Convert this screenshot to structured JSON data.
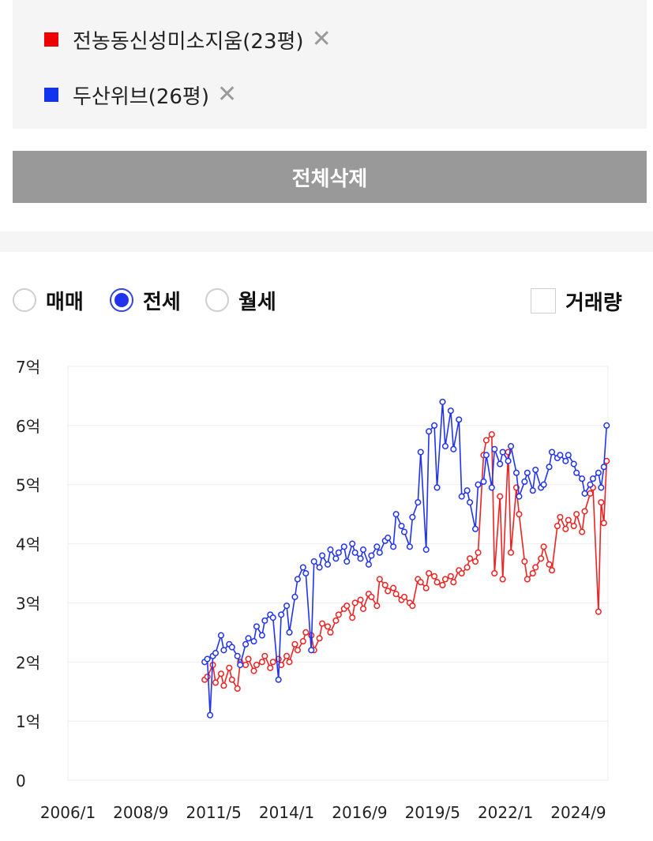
{
  "legend": {
    "items": [
      {
        "label": "전농동신성미소지움(23평)",
        "color": "#ee0000",
        "remove": "✕"
      },
      {
        "label": "두산위브(26평)",
        "color": "#1133ee",
        "remove": "✕"
      }
    ]
  },
  "delete_all_label": "전체삭제",
  "trade_options": [
    {
      "label": "매매",
      "selected": false
    },
    {
      "label": "전세",
      "selected": true
    },
    {
      "label": "월세",
      "selected": false
    }
  ],
  "volume_toggle": {
    "label": "거래량",
    "checked": false
  },
  "chart_data": {
    "type": "line",
    "title": "",
    "xlabel": "",
    "ylabel": "",
    "ylim": [
      0,
      7
    ],
    "xlim": [
      2006.0,
      2025.75
    ],
    "grid": true,
    "y_ticks": [
      {
        "value": 0,
        "label": "0"
      },
      {
        "value": 1,
        "label": "1억"
      },
      {
        "value": 2,
        "label": "2억"
      },
      {
        "value": 3,
        "label": "3억"
      },
      {
        "value": 4,
        "label": "4억"
      },
      {
        "value": 5,
        "label": "5억"
      },
      {
        "value": 6,
        "label": "6억"
      },
      {
        "value": 7,
        "label": "7억"
      }
    ],
    "x_ticks": [
      {
        "value": 2006.0,
        "label": "2006/1"
      },
      {
        "value": 2008.667,
        "label": "2008/9"
      },
      {
        "value": 2011.333,
        "label": "2011/5"
      },
      {
        "value": 2014.0,
        "label": "2014/1"
      },
      {
        "value": 2016.667,
        "label": "2016/9"
      },
      {
        "value": 2019.333,
        "label": "2019/5"
      },
      {
        "value": 2022.0,
        "label": "2022/1"
      },
      {
        "value": 2024.667,
        "label": "2024/9"
      }
    ],
    "series": [
      {
        "name": "전농동신성미소지움(23평)",
        "color": "#ee2222",
        "x": [
          2011.0,
          2011.1,
          2011.3,
          2011.4,
          2011.6,
          2011.7,
          2011.9,
          2012.0,
          2012.2,
          2012.3,
          2012.5,
          2012.6,
          2012.8,
          2012.9,
          2013.1,
          2013.2,
          2013.4,
          2013.5,
          2013.7,
          2013.8,
          2014.0,
          2014.1,
          2014.3,
          2014.4,
          2014.6,
          2014.7,
          2014.9,
          2015.0,
          2015.2,
          2015.3,
          2015.5,
          2015.6,
          2015.8,
          2015.9,
          2016.1,
          2016.2,
          2016.4,
          2016.5,
          2016.7,
          2016.8,
          2017.0,
          2017.1,
          2017.3,
          2017.4,
          2017.6,
          2017.7,
          2017.9,
          2018.0,
          2018.2,
          2018.3,
          2018.5,
          2018.6,
          2018.8,
          2018.9,
          2019.1,
          2019.2,
          2019.4,
          2019.5,
          2019.7,
          2019.8,
          2020.0,
          2020.1,
          2020.3,
          2020.4,
          2020.6,
          2020.7,
          2020.9,
          2021.0,
          2021.2,
          2021.3,
          2021.5,
          2021.6,
          2021.8,
          2021.9,
          2022.1,
          2022.2,
          2022.4,
          2022.5,
          2022.7,
          2022.8,
          2023.0,
          2023.1,
          2023.3,
          2023.4,
          2023.6,
          2023.7,
          2023.9,
          2024.0,
          2024.2,
          2024.3,
          2024.5,
          2024.6,
          2024.8,
          2024.9,
          2025.1,
          2025.2,
          2025.4,
          2025.5,
          2025.6,
          2025.7
        ],
        "values": [
          1.7,
          1.75,
          1.95,
          1.65,
          1.8,
          1.6,
          1.9,
          1.7,
          1.55,
          2.0,
          1.95,
          2.05,
          1.85,
          1.95,
          2.0,
          2.1,
          1.9,
          2.0,
          2.05,
          1.95,
          2.1,
          2.0,
          2.3,
          2.2,
          2.35,
          2.5,
          2.45,
          2.2,
          2.4,
          2.65,
          2.6,
          2.5,
          2.7,
          2.8,
          2.9,
          2.95,
          2.75,
          3.0,
          3.05,
          2.9,
          3.15,
          3.1,
          2.95,
          3.4,
          3.3,
          3.2,
          3.25,
          3.15,
          3.05,
          3.1,
          3.0,
          2.95,
          3.4,
          3.35,
          3.25,
          3.5,
          3.45,
          3.35,
          3.3,
          3.4,
          3.45,
          3.35,
          3.55,
          3.5,
          3.6,
          3.75,
          3.7,
          3.85,
          5.5,
          5.75,
          5.85,
          3.5,
          4.8,
          3.4,
          5.55,
          3.85,
          4.95,
          4.5,
          3.7,
          3.4,
          3.5,
          3.6,
          3.75,
          3.95,
          3.65,
          3.55,
          4.3,
          4.45,
          4.25,
          4.4,
          4.3,
          4.5,
          4.2,
          4.55,
          4.85,
          4.95,
          2.85,
          4.7,
          4.35,
          5.4
        ]
      },
      {
        "name": "두산위브(26평)",
        "color": "#2233ee",
        "x": [
          2011.0,
          2011.1,
          2011.2,
          2011.3,
          2011.4,
          2011.6,
          2011.7,
          2011.9,
          2012.0,
          2012.2,
          2012.3,
          2012.5,
          2012.6,
          2012.8,
          2012.9,
          2013.1,
          2013.2,
          2013.4,
          2013.5,
          2013.7,
          2013.8,
          2014.0,
          2014.1,
          2014.3,
          2014.4,
          2014.6,
          2014.7,
          2014.9,
          2015.0,
          2015.2,
          2015.3,
          2015.5,
          2015.6,
          2015.8,
          2015.9,
          2016.1,
          2016.2,
          2016.4,
          2016.5,
          2016.7,
          2016.8,
          2017.0,
          2017.1,
          2017.3,
          2017.4,
          2017.6,
          2017.7,
          2017.9,
          2018.0,
          2018.2,
          2018.3,
          2018.5,
          2018.6,
          2018.8,
          2018.9,
          2019.1,
          2019.2,
          2019.4,
          2019.5,
          2019.7,
          2019.8,
          2020.0,
          2020.1,
          2020.3,
          2020.4,
          2020.6,
          2020.7,
          2020.9,
          2021.0,
          2021.2,
          2021.3,
          2021.5,
          2021.6,
          2021.8,
          2021.9,
          2022.1,
          2022.2,
          2022.4,
          2022.5,
          2022.7,
          2022.8,
          2023.0,
          2023.1,
          2023.3,
          2023.4,
          2023.6,
          2023.7,
          2023.9,
          2024.0,
          2024.2,
          2024.3,
          2024.5,
          2024.6,
          2024.8,
          2024.9,
          2025.1,
          2025.2,
          2025.4,
          2025.5,
          2025.6,
          2025.7
        ],
        "values": [
          2.0,
          2.05,
          1.1,
          2.1,
          2.15,
          2.45,
          2.2,
          2.3,
          2.25,
          2.1,
          1.95,
          2.3,
          2.4,
          2.35,
          2.6,
          2.45,
          2.7,
          2.8,
          2.75,
          1.7,
          2.8,
          2.95,
          2.5,
          3.1,
          3.4,
          3.6,
          3.5,
          2.2,
          3.7,
          3.6,
          3.8,
          3.65,
          3.9,
          3.75,
          3.85,
          3.95,
          3.7,
          4.0,
          3.85,
          3.75,
          3.9,
          3.65,
          3.8,
          3.95,
          3.85,
          4.05,
          4.1,
          3.95,
          4.5,
          4.3,
          4.2,
          3.95,
          4.45,
          4.7,
          5.55,
          3.9,
          5.9,
          6.0,
          4.95,
          6.4,
          5.65,
          6.25,
          5.6,
          6.1,
          4.8,
          4.9,
          4.7,
          4.25,
          5.0,
          5.05,
          5.5,
          4.95,
          5.6,
          5.35,
          5.55,
          5.4,
          5.65,
          5.2,
          4.8,
          5.05,
          5.2,
          4.9,
          5.25,
          4.95,
          5.0,
          5.3,
          5.55,
          5.45,
          5.5,
          5.4,
          5.5,
          5.35,
          5.2,
          5.1,
          4.85,
          5.0,
          5.1,
          5.2,
          4.95,
          5.3,
          6.0
        ]
      }
    ]
  }
}
